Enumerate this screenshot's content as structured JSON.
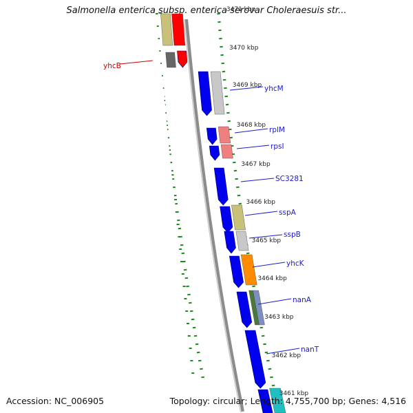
{
  "title": "Salmonella enterica subsp. enterica serovar Choleraesuis str...",
  "footer": {
    "accession": "Accession: NC_006905",
    "stats": "Topology: circular; Length: 4,755,700 bp; Genes: 4,516"
  },
  "colors": {
    "backbone": "#888888",
    "tick": "#1f8a1f",
    "label_blue": "#1a1acc",
    "label_red": "#cc0000",
    "scale_text": "#222222"
  },
  "scale_labels": [
    {
      "text": "3471 kbp"
    },
    {
      "text": "3470 kbp"
    },
    {
      "text": "3469 kbp"
    },
    {
      "text": "3468 kbp"
    },
    {
      "text": "3467 kbp"
    },
    {
      "text": "3466 kbp"
    },
    {
      "text": "3465 kbp"
    },
    {
      "text": "3464 kbp"
    },
    {
      "text": "3463 kbp"
    },
    {
      "text": "3462 kbp"
    },
    {
      "text": "3461 kbp"
    }
  ],
  "gene_labels": [
    {
      "name": "yhcB",
      "color": "red"
    },
    {
      "name": "yhcM",
      "color": "blue"
    },
    {
      "name": "rplM",
      "color": "blue"
    },
    {
      "name": "rpsI",
      "color": "blue"
    },
    {
      "name": "SC3281",
      "color": "blue"
    },
    {
      "name": "sspA",
      "color": "blue"
    },
    {
      "name": "sspB",
      "color": "blue"
    },
    {
      "name": "yhcK",
      "color": "blue"
    },
    {
      "name": "nanA",
      "color": "blue"
    },
    {
      "name": "nanT",
      "color": "blue"
    }
  ]
}
